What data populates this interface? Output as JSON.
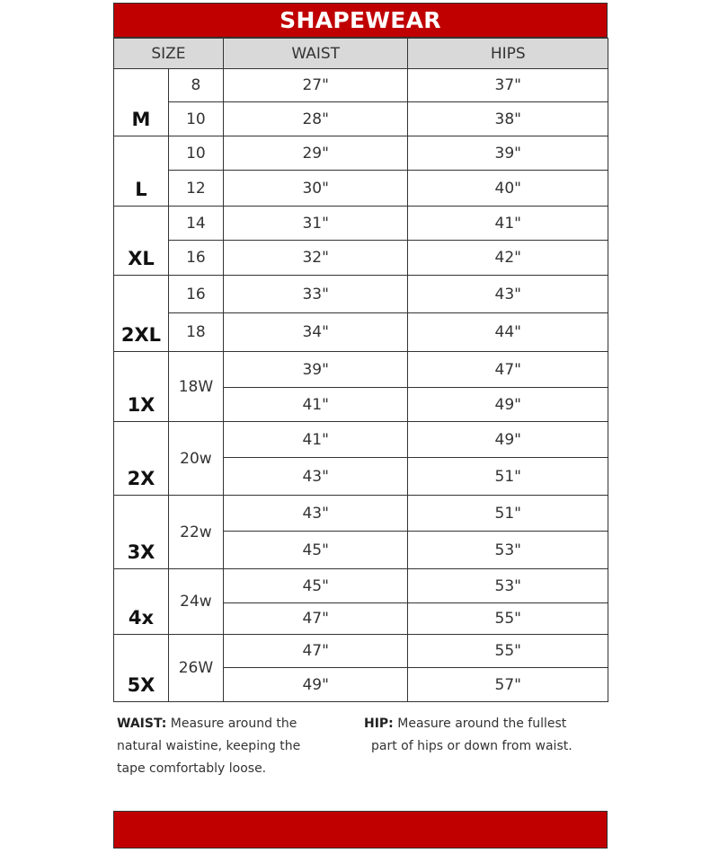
{
  "title": "SHAPEWEAR",
  "header": {
    "size": "SIZE",
    "waist": "WAIST",
    "hips": "HIPS"
  },
  "groups": [
    {
      "size": "M",
      "merged_number": false,
      "rows": [
        {
          "number": "8",
          "waist": "27\"",
          "hips": "37\""
        },
        {
          "number": "10",
          "waist": "28\"",
          "hips": "38\""
        }
      ]
    },
    {
      "size": "L",
      "merged_number": false,
      "rows": [
        {
          "number": "10",
          "waist": "29\"",
          "hips": "39\""
        },
        {
          "number": "12",
          "waist": "30\"",
          "hips": "40\""
        }
      ]
    },
    {
      "size": "XL",
      "merged_number": false,
      "rows": [
        {
          "number": "14",
          "waist": "31\"",
          "hips": "41\""
        },
        {
          "number": "16",
          "waist": "32\"",
          "hips": "42\""
        }
      ]
    },
    {
      "size": "2XL",
      "merged_number": false,
      "rows": [
        {
          "number": "16",
          "waist": "33\"",
          "hips": "43\""
        },
        {
          "number": "18",
          "waist": "34\"",
          "hips": "44\""
        }
      ]
    },
    {
      "size": "1X",
      "merged_number": true,
      "number": "18W",
      "rows": [
        {
          "waist": "39\"",
          "hips": "47\""
        },
        {
          "waist": "41\"",
          "hips": "49\""
        }
      ]
    },
    {
      "size": "2X",
      "merged_number": true,
      "number": "20w",
      "rows": [
        {
          "waist": "41\"",
          "hips": "49\""
        },
        {
          "waist": "43\"",
          "hips": "51\""
        }
      ]
    },
    {
      "size": "3X",
      "merged_number": true,
      "number": "22w",
      "rows": [
        {
          "waist": "43\"",
          "hips": "51\""
        },
        {
          "waist": "45\"",
          "hips": "53\""
        }
      ]
    },
    {
      "size": "4x",
      "merged_number": true,
      "number": "24w",
      "rows": [
        {
          "waist": "45\"",
          "hips": "53\""
        },
        {
          "waist": "47\"",
          "hips": "55\""
        }
      ]
    },
    {
      "size": "5X",
      "merged_number": true,
      "number": "26W",
      "rows": [
        {
          "waist": "47\"",
          "hips": "55\""
        },
        {
          "waist": "49\"",
          "hips": "57\""
        }
      ]
    }
  ],
  "notes": {
    "waist_label": "WAIST:",
    "waist_lines": [
      " Measure around the",
      "natural waistine, keeping the",
      "tape comfortably loose."
    ],
    "hip_label": "HIP:",
    "hip_lines": [
      " Measure around the fullest",
      "part of hips or down from waist."
    ]
  },
  "colors": {
    "accent": "#c00000",
    "header_bg": "#d9d9d9"
  }
}
